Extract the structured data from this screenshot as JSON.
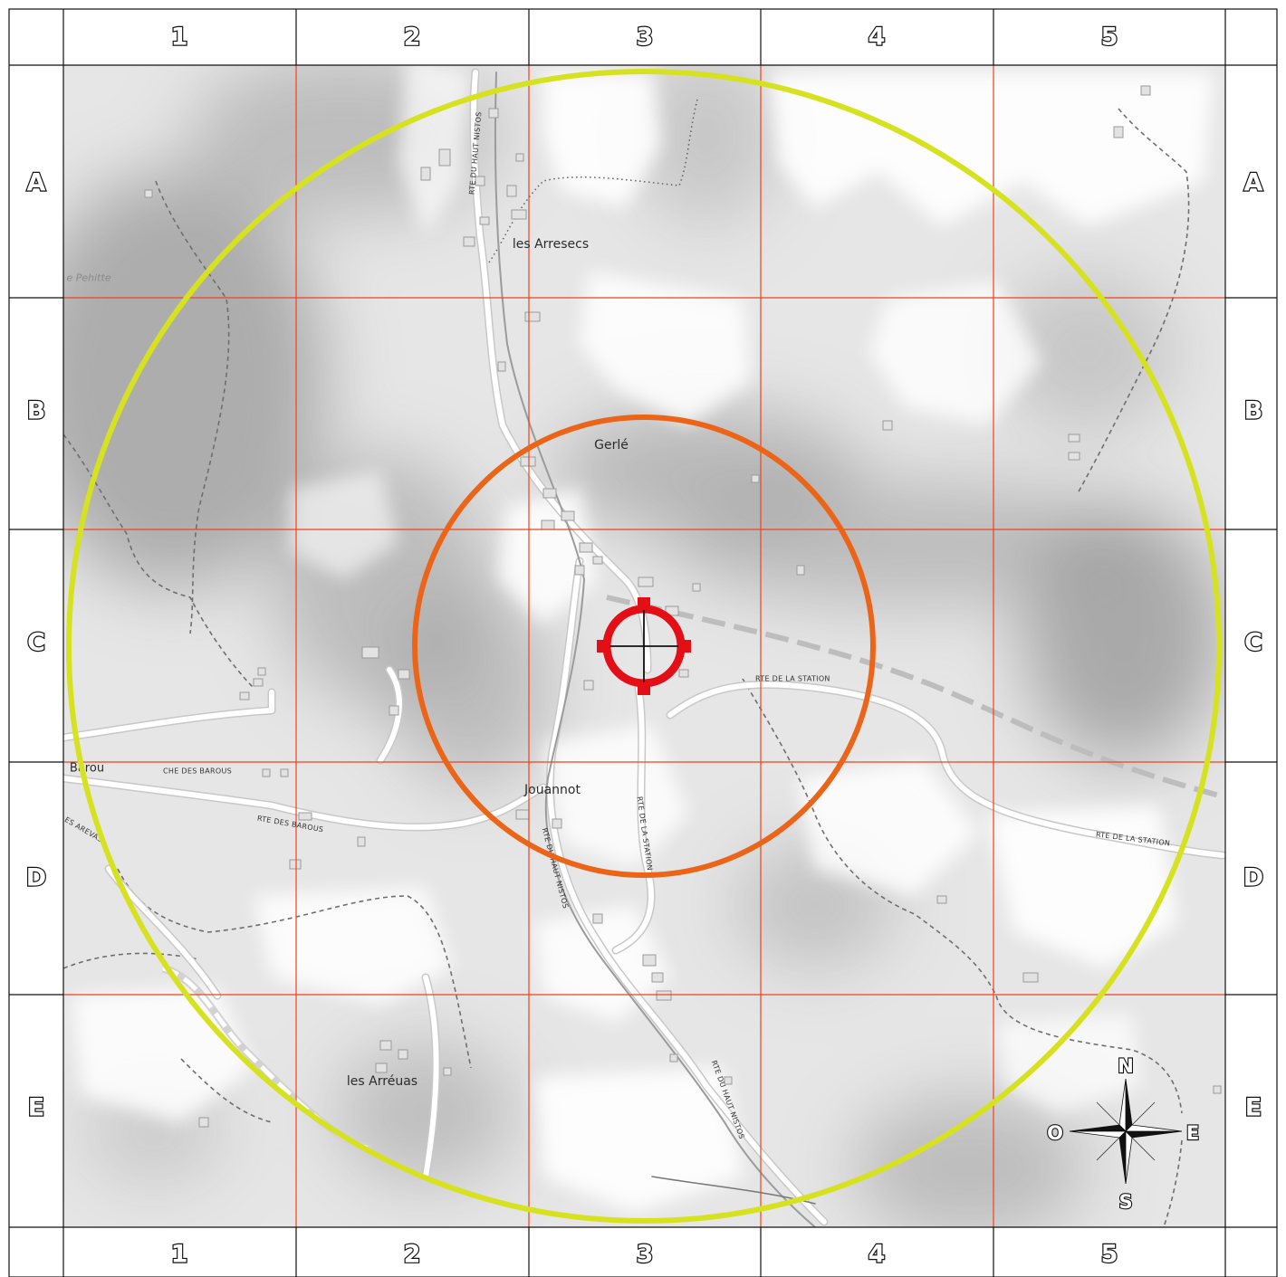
{
  "grid": {
    "columns": [
      "1",
      "2",
      "3",
      "4",
      "5"
    ],
    "rows": [
      "A",
      "B",
      "C",
      "D",
      "E"
    ]
  },
  "places": {
    "arresecs": "les Arresecs",
    "gerle": "Gerlé",
    "jouannot": "Jouannot",
    "arreuas": "les Arréuas",
    "pehitte": "e Pehitte",
    "barou": "Barou"
  },
  "roads": {
    "haut_nistos_north": "RTE DU HAUT NISTOS",
    "haut_nistos_mid": "RTE DU HAUT NISTOS",
    "haut_nistos_south": "RTE DU HAUT NISTOS",
    "station_north": "RTE DE LA STATION",
    "station_east": "RTE DE LA STATION",
    "station_vertical": "RTE DE LA STATION",
    "che_des_barous": "CHE DES BAROUS",
    "rte_des_barous": "RTE DES BAROUS",
    "des_arevas": "ES AREVAS"
  },
  "compass": {
    "north": "N",
    "south": "S",
    "east": "E",
    "west": "O"
  },
  "colors": {
    "outer_circle": "#d6e21f",
    "inner_circle": "#ec6418",
    "target": "#e30e16",
    "grid_lines": "#f0421c"
  }
}
